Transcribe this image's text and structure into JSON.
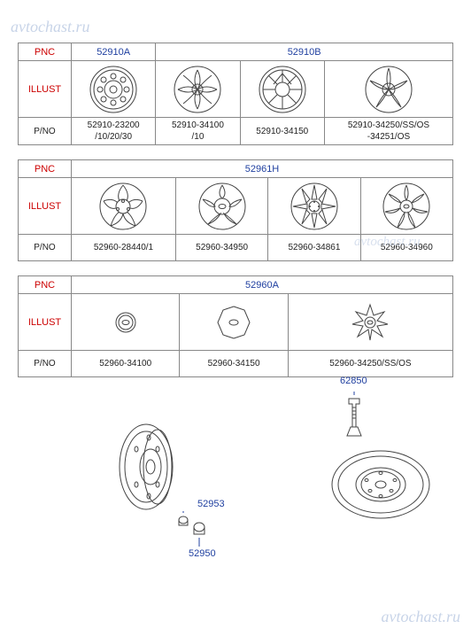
{
  "watermark": "avtochast.ru",
  "row_labels": {
    "pnc": "PNC",
    "illust": "ILLUST",
    "pno": "P/NO"
  },
  "table1": {
    "pnc": [
      "52910A",
      "52910B"
    ],
    "pnc_span": [
      1,
      3
    ],
    "pno": [
      "52910-23200\n/10/20/30",
      "52910-34100\n/10",
      "52910-34150",
      "52910-34250/SS/OS\n-34251/OS"
    ]
  },
  "table2": {
    "pnc": [
      "52961H"
    ],
    "pnc_span": [
      4
    ],
    "pno": [
      "52960-28440/1",
      "52960-34950",
      "52960-34861",
      "52960-34960"
    ]
  },
  "table3": {
    "pnc": [
      "52960A"
    ],
    "pnc_span": [
      3
    ],
    "pno": [
      "52960-34100",
      "52960-34150",
      "52960-34250/SS/OS"
    ]
  },
  "bottom": {
    "labels": {
      "bolt": "62850",
      "nut1": "52953",
      "nut2": "52950"
    }
  },
  "colors": {
    "header": "#c00",
    "link": "#2040a0",
    "border": "#888",
    "wm": "#c8d4e8"
  }
}
